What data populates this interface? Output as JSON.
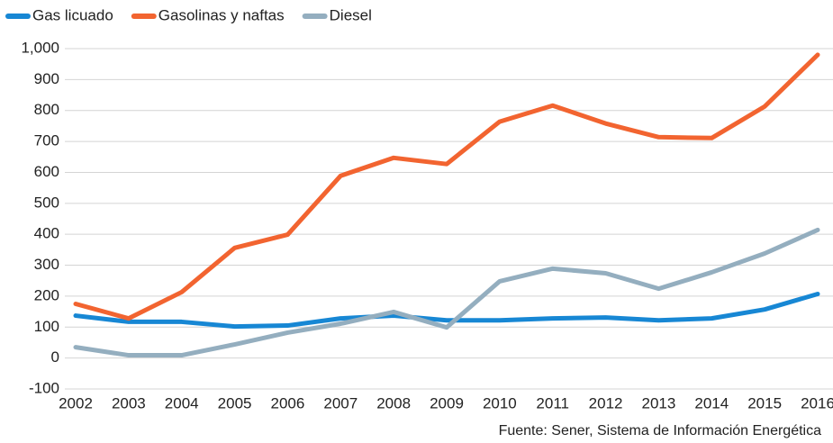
{
  "chart_data": {
    "type": "line",
    "categories": [
      "2002",
      "2003",
      "2004",
      "2005",
      "2006",
      "2007",
      "2008",
      "2009",
      "2010",
      "2011",
      "2012",
      "2013",
      "2014",
      "2015",
      "2016"
    ],
    "series": [
      {
        "name": "Gas licuado",
        "color": "#1787d4",
        "values": [
          137,
          117,
          117,
          102,
          105,
          128,
          137,
          122,
          122,
          128,
          131,
          122,
          128,
          157,
          207
        ]
      },
      {
        "name": "Gasolinas y naftas",
        "color": "#f26430",
        "values": [
          175,
          128,
          213,
          356,
          399,
          589,
          647,
          627,
          764,
          816,
          758,
          714,
          711,
          813,
          980
        ]
      },
      {
        "name": "Diesel",
        "color": "#94aebf",
        "values": [
          35,
          9,
          9,
          44,
          82,
          111,
          149,
          99,
          248,
          289,
          274,
          224,
          277,
          338,
          414
        ]
      }
    ],
    "ylim": [
      -100,
      1000
    ],
    "yticks": [
      -100,
      0,
      100,
      200,
      300,
      400,
      500,
      600,
      700,
      800,
      900,
      {
        "value": 1000,
        "label": "1,000"
      }
    ],
    "grid": true,
    "legend": "top-left",
    "source": "Fuente: Sener, Sistema de Información Energética"
  }
}
